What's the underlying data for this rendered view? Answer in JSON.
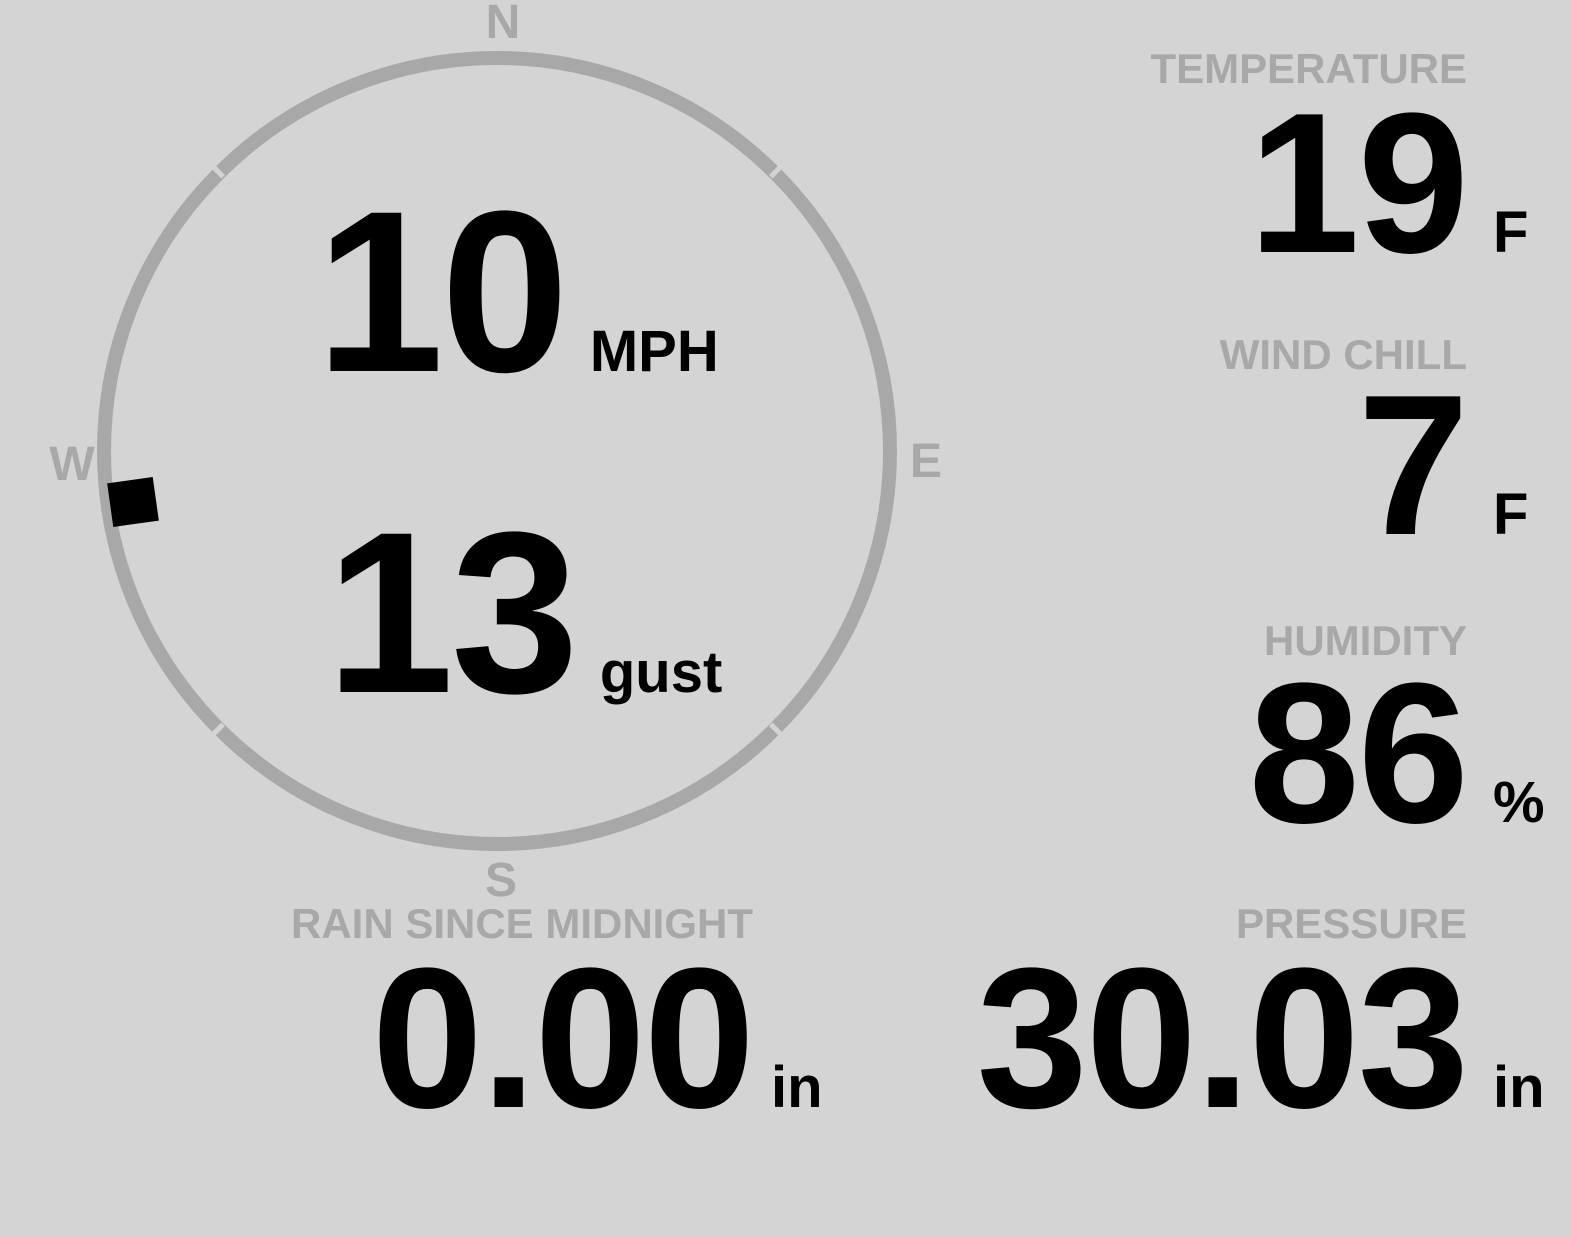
{
  "colors": {
    "background": "#d4d4d4",
    "muted": "#a8a8a8",
    "value_text": "#000000"
  },
  "compass": {
    "cardinal_labels": {
      "north": "N",
      "east": "E",
      "south": "S",
      "west": "W"
    },
    "wind_speed": {
      "value": "10",
      "unit": "MPH"
    },
    "wind_gust": {
      "value": "13",
      "unit": "gust"
    },
    "wind_direction_degrees": 262
  },
  "metrics": {
    "temperature": {
      "label": "TEMPERATURE",
      "value": "19",
      "unit": "F"
    },
    "wind_chill": {
      "label": "WIND CHILL",
      "value": "7",
      "unit": "F"
    },
    "humidity": {
      "label": "HUMIDITY",
      "value": "86",
      "unit": "%"
    },
    "rain_since_midnight": {
      "label": "RAIN SINCE MIDNIGHT",
      "value": "0.00",
      "unit": "in"
    },
    "pressure": {
      "label": "PRESSURE",
      "value": "30.03",
      "unit": "in"
    }
  }
}
